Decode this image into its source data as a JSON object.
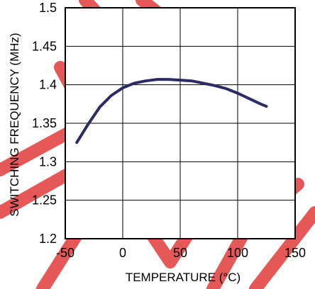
{
  "chart_data": {
    "type": "line",
    "title": "",
    "xlabel": "TEMPERATURE (°C)",
    "ylabel": "SWITCHING FREQUENCY (MHz)",
    "xlim": [
      -50,
      150
    ],
    "ylim": [
      1.2,
      1.5
    ],
    "xticks": [
      -50,
      0,
      50,
      100,
      150
    ],
    "yticks": [
      1.2,
      1.25,
      1.3,
      1.35,
      1.4,
      1.45,
      1.5
    ],
    "xtick_labels": [
      "-50",
      "0",
      "50",
      "100",
      "150"
    ],
    "ytick_labels": [
      "1.2",
      "1.25",
      "1.3",
      "1.35",
      "1.4",
      "1.45",
      "1.5"
    ],
    "grid": true,
    "series": [
      {
        "color": "#2d2b63",
        "x": [
          -40,
          -30,
          -20,
          -10,
          0,
          10,
          20,
          30,
          40,
          50,
          60,
          70,
          80,
          90,
          100,
          110,
          120,
          125
        ],
        "y": [
          1.325,
          1.349,
          1.371,
          1.386,
          1.396,
          1.402,
          1.405,
          1.407,
          1.407,
          1.406,
          1.405,
          1.402,
          1.399,
          1.395,
          1.389,
          1.382,
          1.375,
          1.372
        ]
      }
    ]
  },
  "watermark": {
    "color": "#e23b3b"
  }
}
